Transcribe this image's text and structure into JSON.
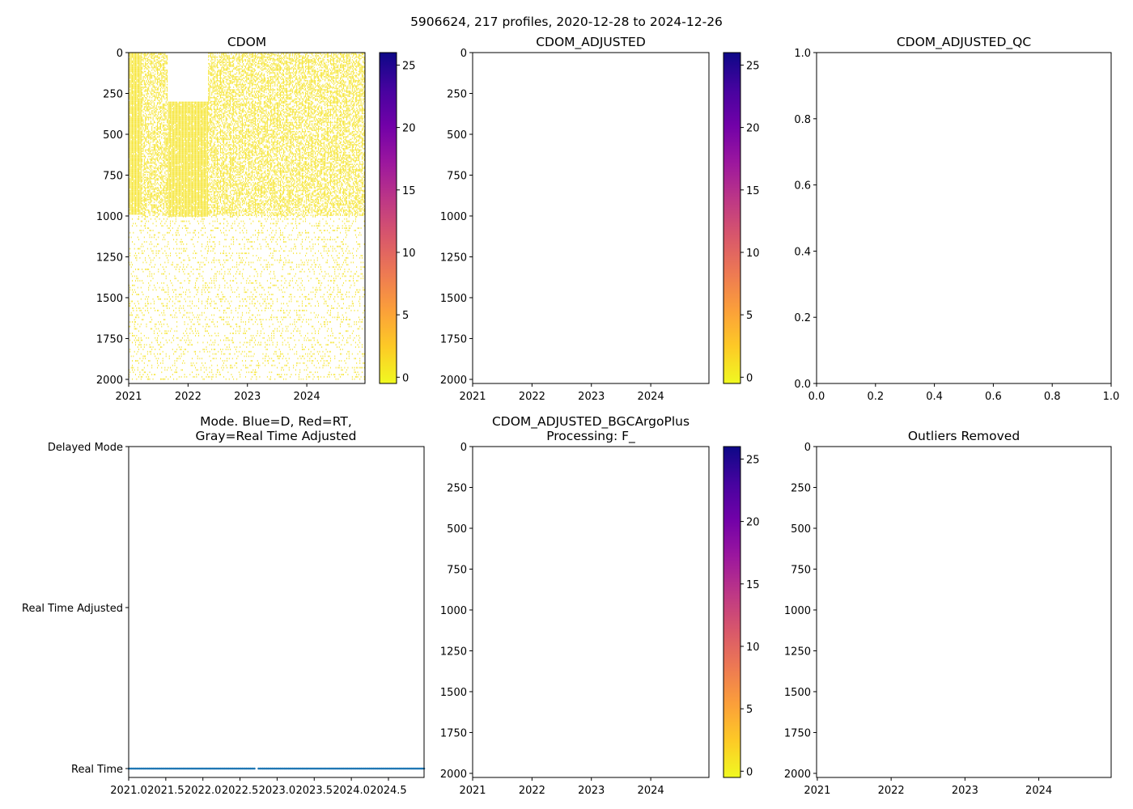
{
  "figure": {
    "suptitle": "5906624, 217 profiles, 2020-12-28 to 2024-12-26"
  },
  "colors": {
    "mode_points": "#1f77b4",
    "cdom_fill": "#f5e325",
    "axis": "#000000"
  },
  "colormap": {
    "name": "plasma_r",
    "ticks": [
      0,
      5,
      10,
      15,
      20,
      25
    ],
    "tick_labels": [
      "0",
      "5",
      "10",
      "15",
      "20",
      "25"
    ],
    "range": [
      -0.5,
      26
    ],
    "stops": [
      "#f0f921",
      "#fdca26",
      "#fb9f3a",
      "#ed7953",
      "#d8576b",
      "#bd3786",
      "#9c179e",
      "#7201a8",
      "#46039f",
      "#0d0887"
    ]
  },
  "chart_data": [
    {
      "id": "cdom",
      "type": "heatmap",
      "title": "CDOM",
      "xlabel": "",
      "ylabel": "",
      "xlim": [
        2021.0,
        2024.98
      ],
      "ylim": [
        2025,
        0
      ],
      "xticks": [
        2021,
        2022,
        2023,
        2024
      ],
      "xtick_labels": [
        "2021",
        "2022",
        "2023",
        "2024"
      ],
      "yticks": [
        0,
        250,
        500,
        750,
        1000,
        1250,
        1500,
        1750,
        2000
      ],
      "ytick_labels": [
        "0",
        "250",
        "500",
        "750",
        "1000",
        "1250",
        "1500",
        "1750",
        "2000"
      ],
      "profiles": 217,
      "time_range": [
        2021.0,
        2024.98
      ],
      "dense_blocks": [
        {
          "x": [
            2021.0,
            2021.22
          ],
          "depth": [
            0,
            990
          ],
          "density": "high"
        },
        {
          "x": [
            2021.22,
            2021.65
          ],
          "depth": [
            0,
            1000
          ],
          "density": "medium"
        },
        {
          "x": [
            2021.65,
            2022.33
          ],
          "depth": [
            300,
            1000
          ],
          "density": "high"
        },
        {
          "x": [
            2022.33,
            2024.98
          ],
          "depth": [
            0,
            1000
          ],
          "density": "medium"
        }
      ],
      "sparse_range": {
        "depth": [
          1000,
          2000
        ],
        "density": "low"
      },
      "value_range": [
        0,
        1
      ],
      "colorbar": true
    },
    {
      "id": "cdom_adjusted",
      "type": "heatmap",
      "title": "CDOM_ADJUSTED",
      "xlim": [
        2021.0,
        2024.98
      ],
      "ylim": [
        2025,
        0
      ],
      "xticks": [
        2021,
        2022,
        2023,
        2024
      ],
      "xtick_labels": [
        "2021",
        "2022",
        "2023",
        "2024"
      ],
      "yticks": [
        0,
        250,
        500,
        750,
        1000,
        1250,
        1500,
        1750,
        2000
      ],
      "ytick_labels": [
        "0",
        "250",
        "500",
        "750",
        "1000",
        "1250",
        "1500",
        "1750",
        "2000"
      ],
      "values": [],
      "colorbar": true
    },
    {
      "id": "cdom_adjusted_qc",
      "type": "scatter",
      "title": "CDOM_ADJUSTED_QC",
      "xlim": [
        0.0,
        1.0
      ],
      "ylim": [
        0.0,
        1.0
      ],
      "xticks": [
        0.0,
        0.2,
        0.4,
        0.6,
        0.8,
        1.0
      ],
      "xtick_labels": [
        "0.0",
        "0.2",
        "0.4",
        "0.6",
        "0.8",
        "1.0"
      ],
      "yticks": [
        0.0,
        0.2,
        0.4,
        0.6,
        0.8,
        1.0
      ],
      "ytick_labels": [
        "0.0",
        "0.2",
        "0.4",
        "0.6",
        "0.8",
        "1.0"
      ],
      "values": []
    },
    {
      "id": "mode",
      "type": "scatter",
      "title_lines": [
        "Mode. Blue=D, Red=RT,",
        "Gray=Real Time Adjusted"
      ],
      "xlim": [
        2021.0,
        2024.98
      ],
      "ylim": [
        0,
        2
      ],
      "xticks": [
        2021.0,
        2021.5,
        2022.0,
        2022.5,
        2023.0,
        2023.5,
        2024.0,
        2024.5
      ],
      "xtick_labels": [
        "2021.0",
        "2021.5",
        "2022.0",
        "2022.5",
        "2023.0",
        "2023.5",
        "2024.0",
        "2024.5"
      ],
      "yticks": [
        0,
        1,
        2
      ],
      "ytick_labels": [
        "Real Time",
        "Real Time Adjusted",
        "Delayed Mode"
      ],
      "series": [
        {
          "name": "Real Time",
          "y": 0,
          "x_range": [
            2021.0,
            2024.98
          ],
          "count": 217,
          "gap": [
            2022.71,
            2022.74
          ]
        }
      ]
    },
    {
      "id": "cdom_bgc",
      "type": "heatmap",
      "title_lines": [
        "CDOM_ADJUSTED_BGCArgoPlus",
        "Processing: F_"
      ],
      "xlim": [
        2021.0,
        2024.98
      ],
      "ylim": [
        2025,
        0
      ],
      "xticks": [
        2021,
        2022,
        2023,
        2024
      ],
      "xtick_labels": [
        "2021",
        "2022",
        "2023",
        "2024"
      ],
      "yticks": [
        0,
        250,
        500,
        750,
        1000,
        1250,
        1500,
        1750,
        2000
      ],
      "ytick_labels": [
        "0",
        "250",
        "500",
        "750",
        "1000",
        "1250",
        "1500",
        "1750",
        "2000"
      ],
      "values": [],
      "colorbar": true
    },
    {
      "id": "outliers",
      "type": "scatter",
      "title": "Outliers Removed",
      "xlim": [
        2020.99,
        2024.98
      ],
      "ylim": [
        2025,
        0
      ],
      "xticks": [
        2021,
        2022,
        2023,
        2024
      ],
      "xtick_labels": [
        "2021",
        "2022",
        "2023",
        "2024"
      ],
      "yticks": [
        0,
        250,
        500,
        750,
        1000,
        1250,
        1500,
        1750,
        2000
      ],
      "ytick_labels": [
        "0",
        "250",
        "500",
        "750",
        "1000",
        "1250",
        "1500",
        "1750",
        "2000"
      ],
      "values": []
    }
  ]
}
